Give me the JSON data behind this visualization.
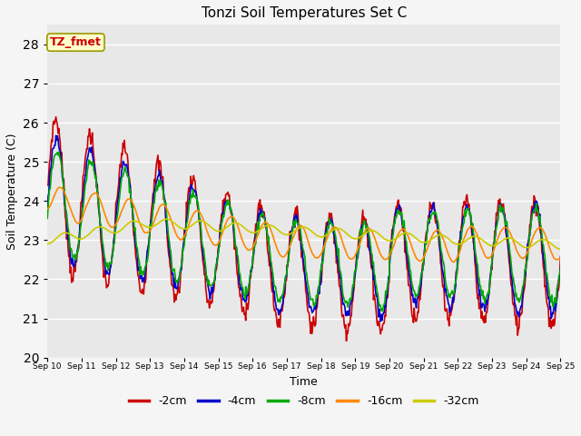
{
  "title": "Tonzi Soil Temperatures Set C",
  "xlabel": "Time",
  "ylabel": "Soil Temperature (C)",
  "annotation": "TZ_fmet",
  "ylim": [
    20.0,
    28.5
  ],
  "series_labels": [
    "-2cm",
    "-4cm",
    "-8cm",
    "-16cm",
    "-32cm"
  ],
  "series_colors": [
    "#cc0000",
    "#0000cc",
    "#00aa00",
    "#ff8800",
    "#cccc00"
  ],
  "series_linewidths": [
    1.2,
    1.2,
    1.2,
    1.2,
    1.2
  ],
  "x_tick_labels": [
    "Sep 10",
    "Sep 11",
    "Sep 12",
    "Sep 13",
    "Sep 14",
    "Sep 15",
    "Sep 16",
    "Sep 17",
    "Sep 18",
    "Sep 19",
    "Sep 20",
    "Sep 21",
    "Sep 22",
    "Sep 23",
    "Sep 24",
    "Sep 25"
  ],
  "background_color": "#e8e8e8",
  "fig_background": "#f5f5f5",
  "grid_color": "#ffffff",
  "yticks": [
    20.0,
    21.0,
    22.0,
    23.0,
    24.0,
    25.0,
    26.0,
    27.0,
    28.0
  ]
}
